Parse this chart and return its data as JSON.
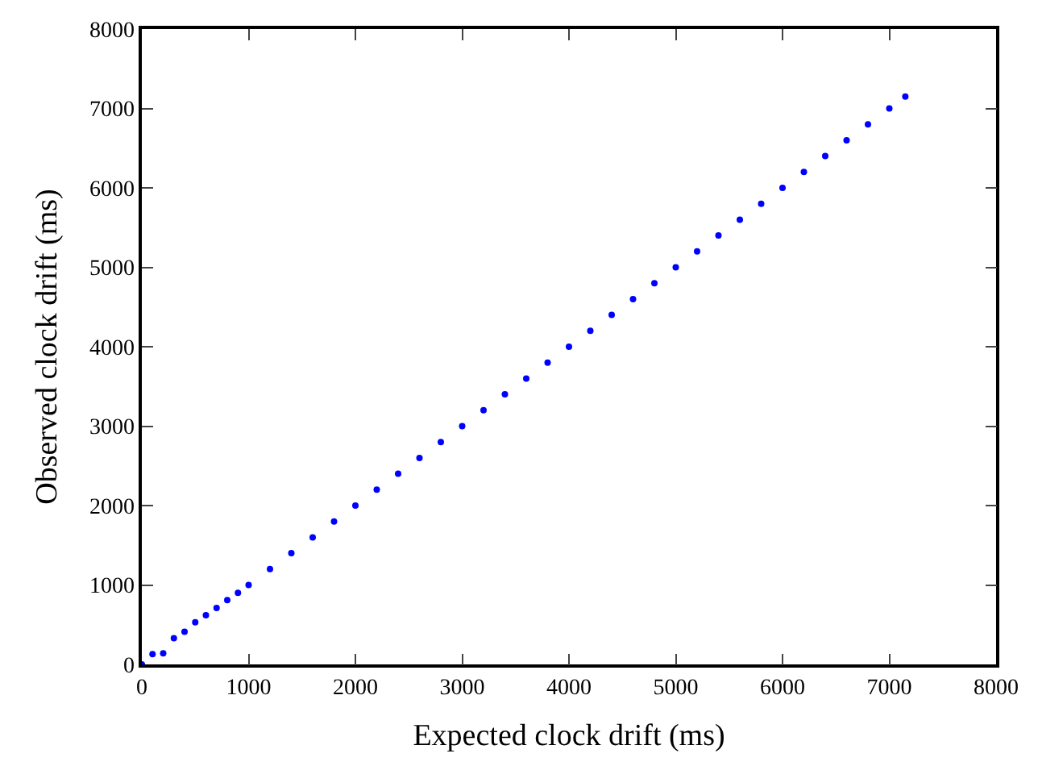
{
  "chart_data": {
    "type": "scatter",
    "xlabel": "Expected clock drift (ms)",
    "ylabel": "Observed clock drift (ms)",
    "x": [
      0,
      100,
      200,
      300,
      400,
      500,
      600,
      700,
      800,
      900,
      1000,
      1200,
      1400,
      1600,
      1800,
      2000,
      2200,
      2400,
      2600,
      2800,
      3000,
      3200,
      3400,
      3600,
      3800,
      4000,
      4200,
      4400,
      4600,
      4800,
      5000,
      5200,
      5400,
      5600,
      5800,
      6000,
      6200,
      6400,
      6600,
      6800,
      7000,
      7150
    ],
    "series": [
      {
        "color": "#0000ff",
        "values": [
          0,
          130,
          140,
          330,
          410,
          530,
          620,
          710,
          810,
          900,
          1000,
          1200,
          1400,
          1600,
          1800,
          2000,
          2200,
          2400,
          2600,
          2800,
          3000,
          3200,
          3400,
          3600,
          3800,
          4000,
          4200,
          4400,
          4600,
          4800,
          5000,
          5200,
          5400,
          5600,
          5800,
          6000,
          6200,
          6400,
          6600,
          6800,
          7000,
          7150
        ]
      }
    ],
    "xlim": [
      0,
      8000
    ],
    "ylim": [
      0,
      8000
    ],
    "xticks": [
      0,
      1000,
      2000,
      3000,
      4000,
      5000,
      6000,
      7000,
      8000
    ],
    "yticks": [
      0,
      1000,
      2000,
      3000,
      4000,
      5000,
      6000,
      7000,
      8000
    ],
    "marker": "circle"
  }
}
